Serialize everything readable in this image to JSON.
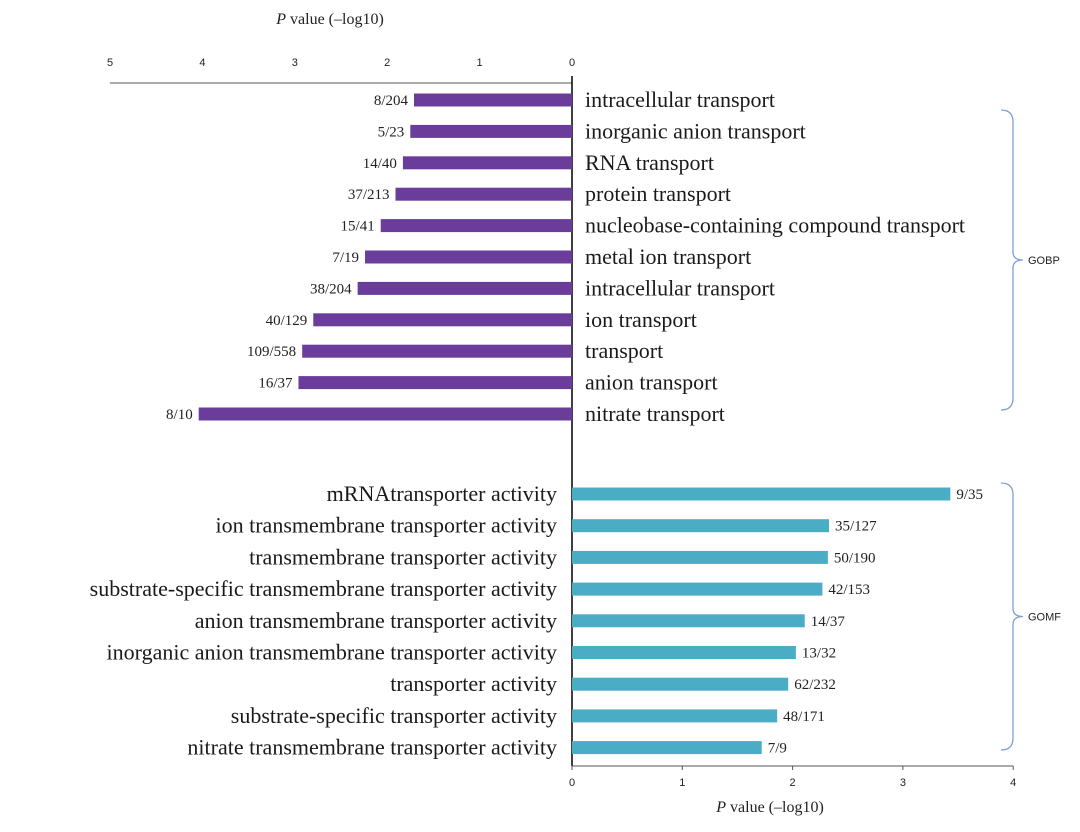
{
  "chart_data": {
    "type": "bar",
    "orientation": "horizontal",
    "colors": {
      "gobp": "#6a3d9a",
      "gomf": "#4bacc6",
      "bracket": "#7ea0d6",
      "axis": "#000000"
    },
    "top_axis": {
      "title_italic": "P",
      "title_rest": " value (–log10)",
      "range": [
        0,
        5
      ],
      "ticks": [
        "5",
        "4",
        "3",
        "2",
        "1",
        "0"
      ]
    },
    "bottom_axis": {
      "title_italic": "P",
      "title_rest": " value (–log10)",
      "range": [
        0,
        4
      ],
      "ticks": [
        "0",
        "1",
        "2",
        "3",
        "4"
      ]
    },
    "series": [
      {
        "name": "GOBP",
        "label": "GOBP",
        "items": [
          {
            "term": "intracellular transport",
            "count": "8/204",
            "value": 1.71
          },
          {
            "term": "inorganic anion transport",
            "count": "5/23",
            "value": 1.75
          },
          {
            "term": "RNA transport",
            "count": "14/40",
            "value": 1.83
          },
          {
            "term": "protein transport",
            "count": "37/213",
            "value": 1.91
          },
          {
            "term": "nucleobase-containing compound transport",
            "count": "15/41",
            "value": 2.07
          },
          {
            "term": "metal ion transport",
            "count": "7/19",
            "value": 2.24
          },
          {
            "term": "intracellular transport",
            "count": "38/204",
            "value": 2.32
          },
          {
            "term": "ion transport",
            "count": "40/129",
            "value": 2.8
          },
          {
            "term": "transport",
            "count": "109/558",
            "value": 2.92
          },
          {
            "term": "anion transport",
            "count": "16/37",
            "value": 2.96
          },
          {
            "term": "nitrate transport",
            "count": "8/10",
            "value": 4.04
          }
        ]
      },
      {
        "name": "GOMF",
        "label": "GOMF",
        "items": [
          {
            "term": "mRNAtransporter activity",
            "count": "9/35",
            "value": 3.43
          },
          {
            "term": "ion transmembrane transporter activity",
            "count": "35/127",
            "value": 2.33
          },
          {
            "term": "transmembrane transporter activity",
            "count": "50/190",
            "value": 2.32
          },
          {
            "term": "substrate-specific transmembrane transporter activity",
            "count": "42/153",
            "value": 2.27
          },
          {
            "term": "anion transmembrane transporter activity",
            "count": "14/37",
            "value": 2.11
          },
          {
            "term": "inorganic anion transmembrane transporter activity",
            "count": "13/32",
            "value": 2.03
          },
          {
            "term": "transporter activity",
            "count": "62/232",
            "value": 1.96
          },
          {
            "term": "substrate-specific transporter activity",
            "count": "48/171",
            "value": 1.86
          },
          {
            "term": "nitrate transmembrane transporter activity",
            "count": "7/9",
            "value": 1.72
          }
        ]
      }
    ]
  }
}
